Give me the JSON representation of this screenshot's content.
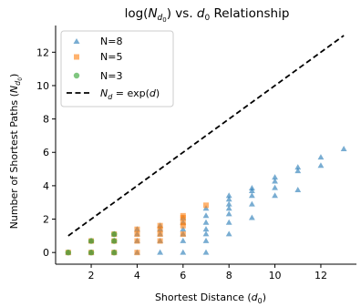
{
  "chart_data": {
    "type": "scatter",
    "title": "log(N_d0) vs. d_0 Relationship",
    "xlabel": "Shortest Distance (d_0)",
    "ylabel": "Number of Shortest Paths (N_d0)",
    "xlim": [
      0.45,
      13.55
    ],
    "ylim": [
      -0.7,
      13.6
    ],
    "xticks": [
      2,
      4,
      6,
      8,
      10,
      12
    ],
    "yticks": [
      0,
      2,
      4,
      6,
      8,
      10,
      12
    ],
    "grid": false,
    "legend_position": "upper-left",
    "series": [
      {
        "name": "N=8",
        "marker": "triangle",
        "color": "#1f77b4",
        "points": [
          [
            1,
            0
          ],
          [
            2,
            0
          ],
          [
            2,
            0.69
          ],
          [
            3,
            0
          ],
          [
            3,
            0.69
          ],
          [
            3,
            1.1
          ],
          [
            4,
            0
          ],
          [
            4,
            0.69
          ],
          [
            4,
            1.1
          ],
          [
            4,
            1.39
          ],
          [
            5,
            0
          ],
          [
            5,
            0.69
          ],
          [
            5,
            1.1
          ],
          [
            5,
            1.39
          ],
          [
            5,
            1.61
          ],
          [
            6,
            0
          ],
          [
            6,
            0.69
          ],
          [
            6,
            1.1
          ],
          [
            6,
            1.39
          ],
          [
            6,
            1.79
          ],
          [
            6,
            2.08
          ],
          [
            7,
            0
          ],
          [
            7,
            0.69
          ],
          [
            7,
            1.1
          ],
          [
            7,
            1.39
          ],
          [
            7,
            1.79
          ],
          [
            7,
            2.2
          ],
          [
            7,
            2.64
          ],
          [
            8,
            1.1
          ],
          [
            8,
            1.79
          ],
          [
            8,
            2.3
          ],
          [
            8,
            2.64
          ],
          [
            8,
            2.89
          ],
          [
            8,
            3.18
          ],
          [
            8,
            3.4
          ],
          [
            9,
            2.08
          ],
          [
            9,
            2.89
          ],
          [
            9,
            3.4
          ],
          [
            9,
            3.69
          ],
          [
            9,
            3.85
          ],
          [
            10,
            3.4
          ],
          [
            10,
            3.87
          ],
          [
            10,
            4.26
          ],
          [
            10,
            4.5
          ],
          [
            11,
            3.74
          ],
          [
            11,
            4.88
          ],
          [
            11,
            5.1
          ],
          [
            12,
            5.2
          ],
          [
            12,
            5.7
          ],
          [
            13,
            6.2
          ]
        ]
      },
      {
        "name": "N=5",
        "marker": "square",
        "color": "#ff7f0e",
        "points": [
          [
            1,
            0
          ],
          [
            2,
            0
          ],
          [
            2,
            0.69
          ],
          [
            3,
            0
          ],
          [
            3,
            0.69
          ],
          [
            3,
            1.1
          ],
          [
            4,
            0
          ],
          [
            4,
            0.69
          ],
          [
            4,
            1.1
          ],
          [
            4,
            1.39
          ],
          [
            5,
            0.69
          ],
          [
            5,
            1.1
          ],
          [
            5,
            1.39
          ],
          [
            5,
            1.61
          ],
          [
            6,
            1.1
          ],
          [
            6,
            1.61
          ],
          [
            6,
            1.79
          ],
          [
            6,
            2.08
          ],
          [
            6,
            2.2
          ],
          [
            7,
            2.83
          ]
        ]
      },
      {
        "name": "N=3",
        "marker": "circle",
        "color": "#2ca02c",
        "points": [
          [
            1,
            0
          ],
          [
            2,
            0
          ],
          [
            2,
            0.69
          ],
          [
            3,
            0
          ],
          [
            3,
            0.69
          ],
          [
            3,
            1.1
          ]
        ]
      },
      {
        "name": "N_d = exp(d)",
        "marker": "dashed-line",
        "color": "#000000",
        "points": [
          [
            1,
            1
          ],
          [
            13,
            13
          ]
        ]
      }
    ]
  }
}
